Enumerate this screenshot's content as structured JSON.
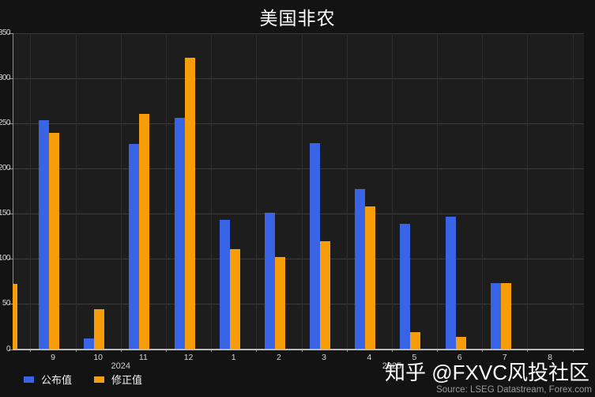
{
  "watermark": "知乎 @FXVC风投社区",
  "source": "Source: LSEG Datastream, Forex.com",
  "chart_data": {
    "type": "bar",
    "title": "美国非农",
    "categories": [
      "9",
      "10",
      "11",
      "12",
      "1",
      "2",
      "3",
      "4",
      "5",
      "6",
      "7",
      "8"
    ],
    "year_groups": [
      {
        "label": "2024",
        "from": 0,
        "to": 3
      },
      {
        "label": "2025",
        "from": 4,
        "to": 11
      }
    ],
    "series": [
      {
        "name": "公布值",
        "color": "#3a64e6",
        "values": [
          254,
          12,
          227,
          256,
          143,
          151,
          228,
          177,
          139,
          147,
          73,
          null
        ]
      },
      {
        "name": "修正值",
        "color": "#f89d0a",
        "values": [
          240,
          44,
          261,
          323,
          111,
          102,
          120,
          158,
          19,
          14,
          73,
          null
        ]
      }
    ],
    "clipped_left_bar": {
      "series": "修正值",
      "value": 72
    },
    "ylim": [
      0,
      350
    ],
    "ytick_step": 50,
    "grid": true,
    "legend_position": "bottom-left",
    "background": "#131313",
    "plot_background": "#1d1d1d"
  }
}
